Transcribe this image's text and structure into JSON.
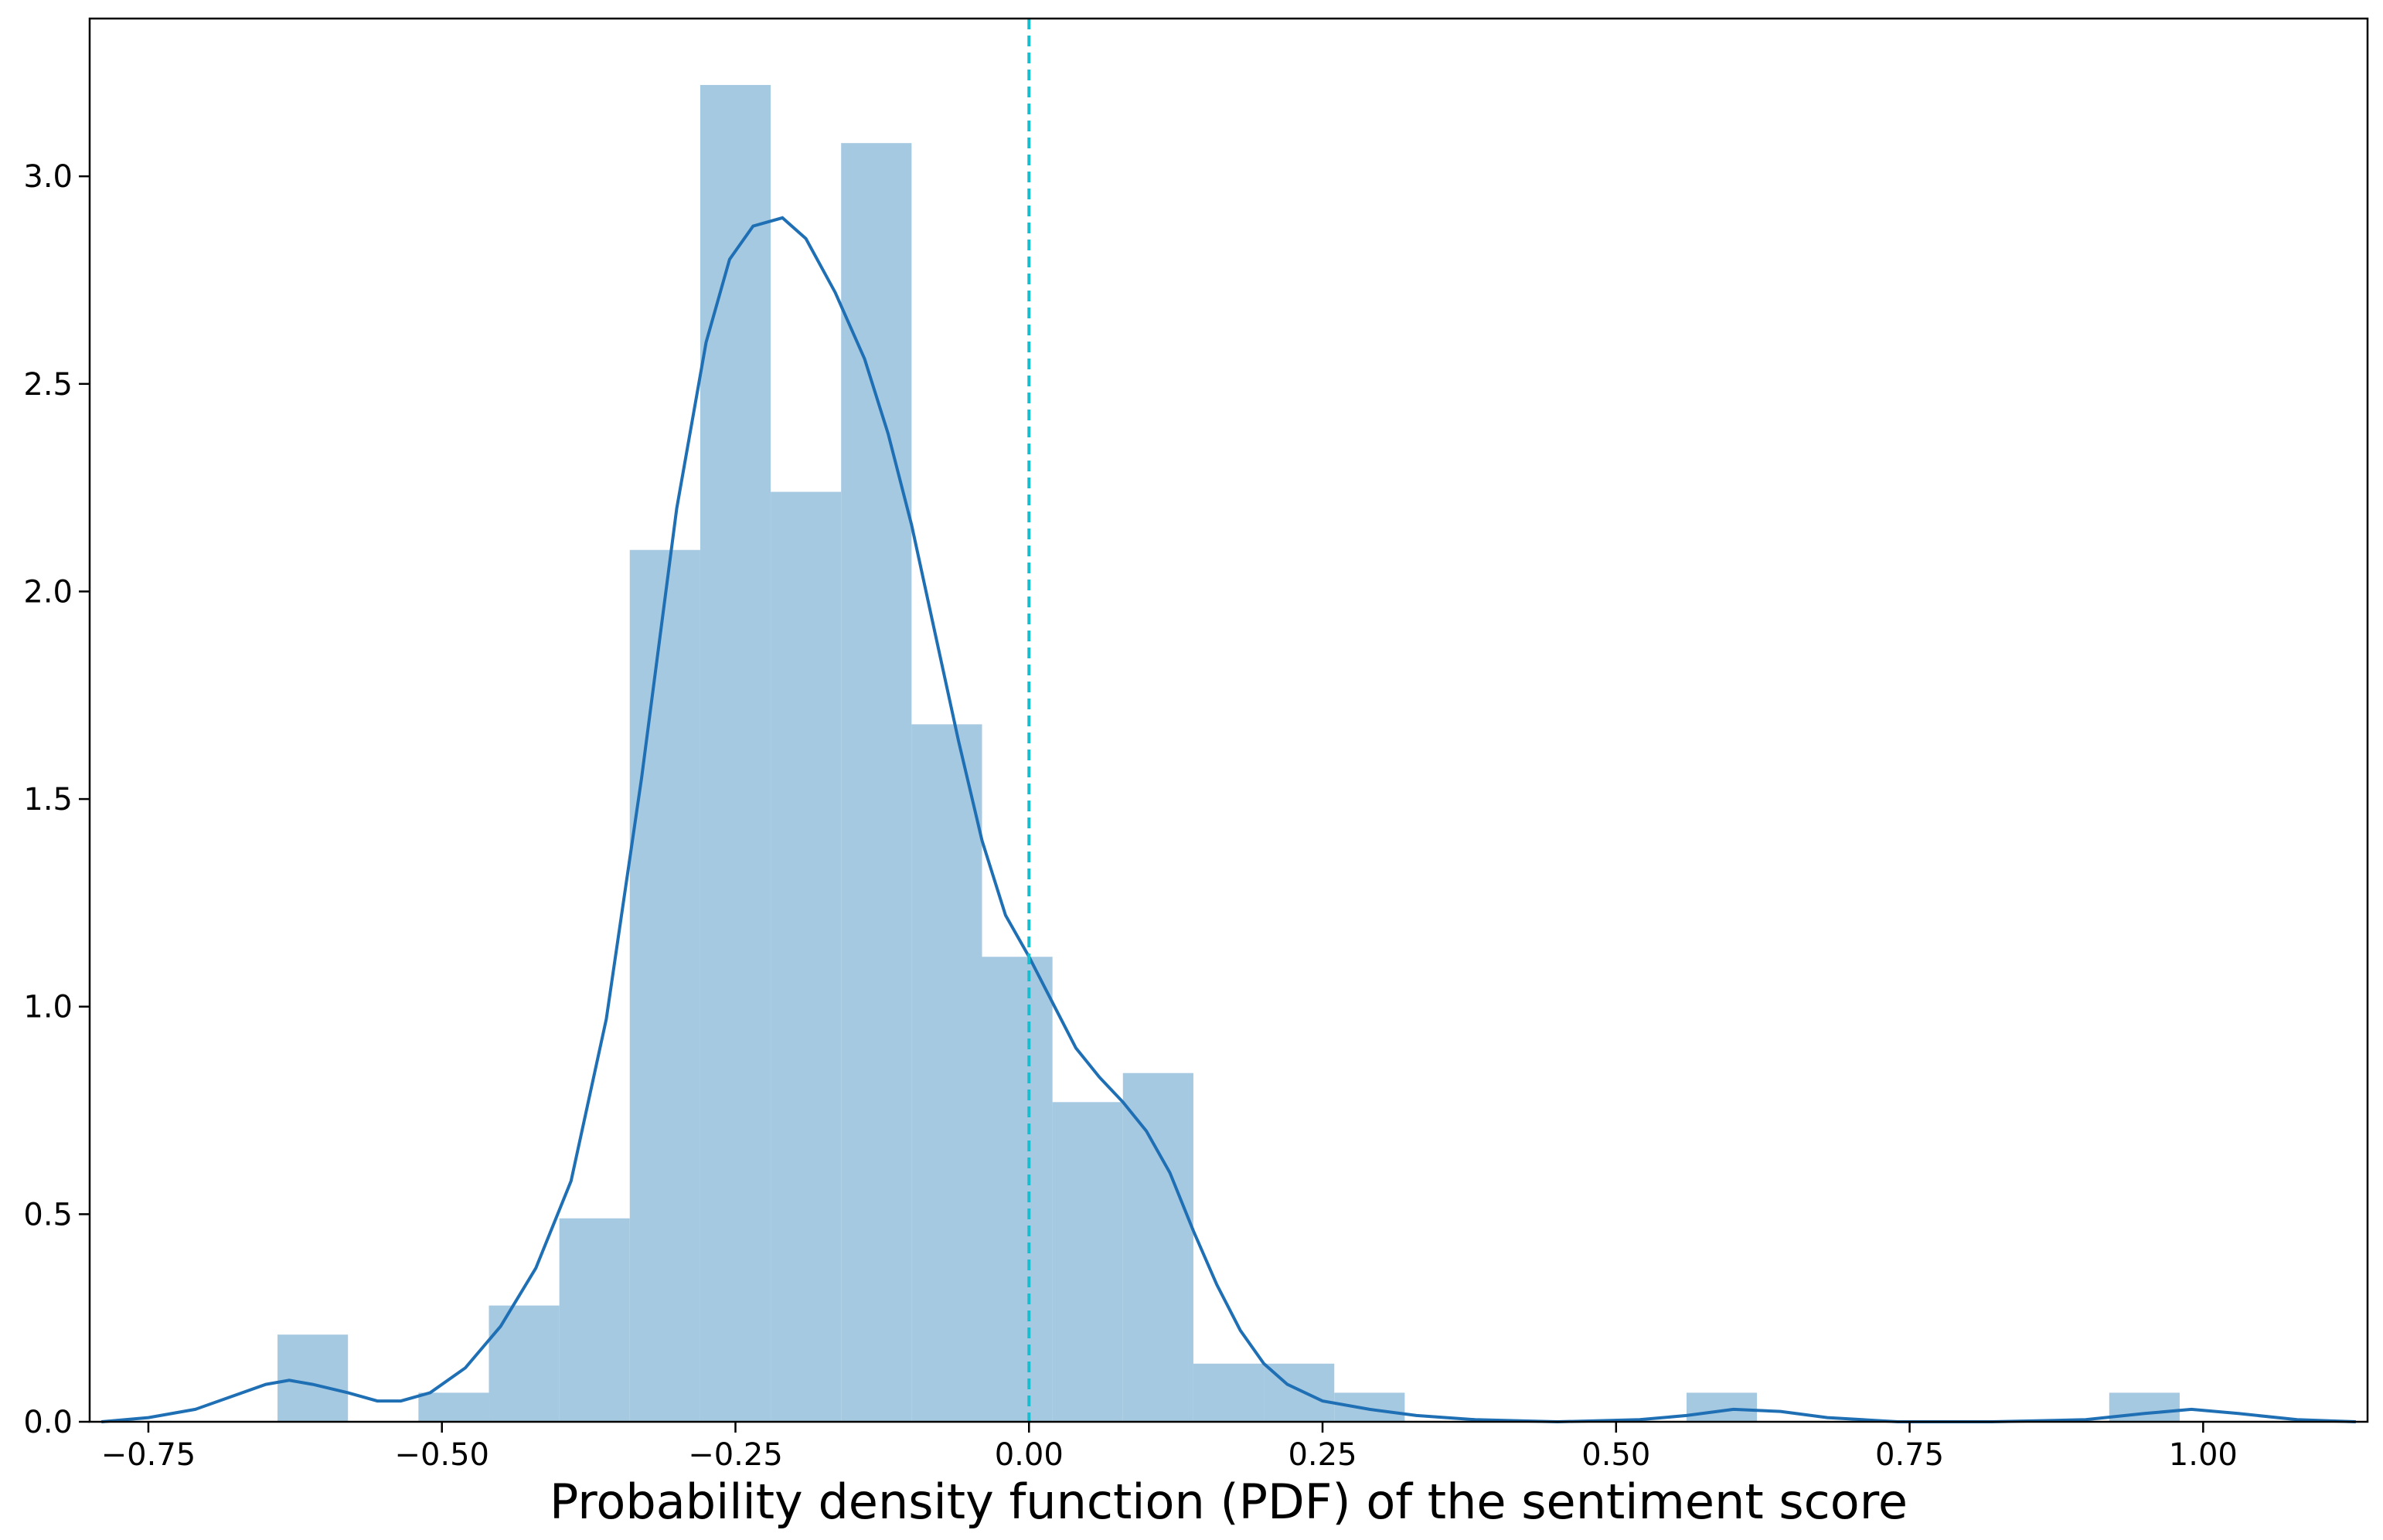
{
  "chart_data": {
    "type": "bar",
    "xlabel": "Probability density function (PDF) of the sentiment score",
    "ylabel": "",
    "xlim": [
      -0.8,
      1.14
    ],
    "ylim": [
      0,
      3.38
    ],
    "grid": false,
    "xticks": [
      -0.75,
      -0.5,
      -0.25,
      0.0,
      0.25,
      0.5,
      0.75,
      1.0
    ],
    "xtick_labels": [
      "−0.75",
      "−0.50",
      "−0.25",
      "0.00",
      "0.25",
      "0.50",
      "0.75",
      "1.00"
    ],
    "yticks": [
      0.0,
      0.5,
      1.0,
      1.5,
      2.0,
      2.5,
      3.0
    ],
    "ytick_labels": [
      "0.0",
      "0.5",
      "1.0",
      "1.5",
      "2.0",
      "2.5",
      "3.0"
    ],
    "histogram": {
      "name": "histogram",
      "color": "#a6c9e2",
      "bins": [
        {
          "x0": -0.64,
          "x1": -0.58,
          "density": 0.21
        },
        {
          "x0": -0.58,
          "x1": -0.52,
          "density": 0.0
        },
        {
          "x0": -0.52,
          "x1": -0.46,
          "density": 0.07
        },
        {
          "x0": -0.46,
          "x1": -0.4,
          "density": 0.28
        },
        {
          "x0": -0.4,
          "x1": -0.34,
          "density": 0.49
        },
        {
          "x0": -0.34,
          "x1": -0.28,
          "density": 2.1
        },
        {
          "x0": -0.28,
          "x1": -0.22,
          "density": 3.22
        },
        {
          "x0": -0.22,
          "x1": -0.16,
          "density": 2.24
        },
        {
          "x0": -0.16,
          "x1": -0.1,
          "density": 3.08
        },
        {
          "x0": -0.1,
          "x1": -0.04,
          "density": 1.68
        },
        {
          "x0": -0.04,
          "x1": 0.02,
          "density": 1.12
        },
        {
          "x0": 0.02,
          "x1": 0.08,
          "density": 0.77
        },
        {
          "x0": 0.08,
          "x1": 0.14,
          "density": 0.84
        },
        {
          "x0": 0.14,
          "x1": 0.2,
          "density": 0.14
        },
        {
          "x0": 0.2,
          "x1": 0.26,
          "density": 0.14
        },
        {
          "x0": 0.26,
          "x1": 0.32,
          "density": 0.07
        },
        {
          "x0": 0.56,
          "x1": 0.62,
          "density": 0.07
        },
        {
          "x0": 0.92,
          "x1": 0.98,
          "density": 0.07
        }
      ]
    },
    "kde": {
      "name": "kde",
      "color": "#1f6fb4",
      "points": [
        [
          -0.79,
          0.0
        ],
        [
          -0.75,
          0.01
        ],
        [
          -0.71,
          0.03
        ],
        [
          -0.68,
          0.06
        ],
        [
          -0.65,
          0.09
        ],
        [
          -0.63,
          0.1
        ],
        [
          -0.61,
          0.09
        ],
        [
          -0.58,
          0.07
        ],
        [
          -0.555,
          0.05
        ],
        [
          -0.535,
          0.05
        ],
        [
          -0.51,
          0.07
        ],
        [
          -0.48,
          0.13
        ],
        [
          -0.45,
          0.23
        ],
        [
          -0.42,
          0.37
        ],
        [
          -0.39,
          0.58
        ],
        [
          -0.36,
          0.97
        ],
        [
          -0.33,
          1.55
        ],
        [
          -0.3,
          2.2
        ],
        [
          -0.275,
          2.6
        ],
        [
          -0.255,
          2.8
        ],
        [
          -0.235,
          2.88
        ],
        [
          -0.21,
          2.9
        ],
        [
          -0.19,
          2.85
        ],
        [
          -0.165,
          2.72
        ],
        [
          -0.14,
          2.56
        ],
        [
          -0.12,
          2.38
        ],
        [
          -0.1,
          2.16
        ],
        [
          -0.08,
          1.9
        ],
        [
          -0.06,
          1.64
        ],
        [
          -0.04,
          1.4
        ],
        [
          -0.02,
          1.22
        ],
        [
          0.0,
          1.12
        ],
        [
          0.02,
          1.01
        ],
        [
          0.04,
          0.9
        ],
        [
          0.06,
          0.83
        ],
        [
          0.08,
          0.77
        ],
        [
          0.1,
          0.7
        ],
        [
          0.12,
          0.6
        ],
        [
          0.14,
          0.46
        ],
        [
          0.16,
          0.33
        ],
        [
          0.18,
          0.22
        ],
        [
          0.2,
          0.14
        ],
        [
          0.22,
          0.09
        ],
        [
          0.25,
          0.05
        ],
        [
          0.29,
          0.03
        ],
        [
          0.33,
          0.015
        ],
        [
          0.38,
          0.005
        ],
        [
          0.45,
          0.0
        ],
        [
          0.52,
          0.005
        ],
        [
          0.56,
          0.015
        ],
        [
          0.6,
          0.03
        ],
        [
          0.64,
          0.025
        ],
        [
          0.68,
          0.01
        ],
        [
          0.74,
          0.0
        ],
        [
          0.82,
          0.0
        ],
        [
          0.9,
          0.005
        ],
        [
          0.95,
          0.02
        ],
        [
          0.99,
          0.03
        ],
        [
          1.03,
          0.02
        ],
        [
          1.08,
          0.005
        ],
        [
          1.13,
          0.0
        ]
      ]
    },
    "reference_line": {
      "x": 0.0,
      "style": "dashed",
      "color": "#17becf"
    }
  }
}
